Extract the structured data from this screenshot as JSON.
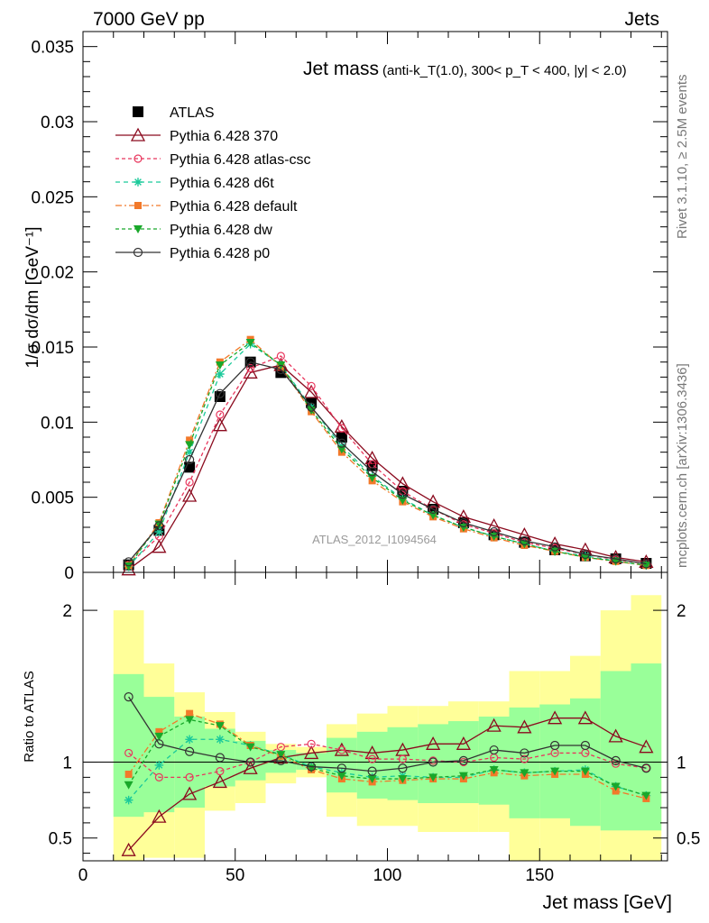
{
  "header": {
    "left": "7000 GeV pp",
    "right": "Jets"
  },
  "side_labels": {
    "rivet": "Rivet 3.1.10, ≥ 2.5M events",
    "mcplots": "mcplots.cern.ch [arXiv:1306.3436]"
  },
  "colors": {
    "ATLAS": "#000000",
    "p370": "#8b0a1e",
    "atlas_csc": "#e8365d",
    "d6t": "#1ac99a",
    "default": "#f2792a",
    "dw": "#19a82a",
    "p0": "#333333",
    "band_outer": "#ffff99",
    "band_inner": "#99ff99"
  },
  "chart_data": [
    {
      "type": "line",
      "title": "Jet mass",
      "subtitle": "(anti-k_T(1.0), 300< p_T < 400, |y| < 2.0)",
      "ylabel": "1/σ dσ/dm [GeV⁻¹]",
      "xlabel": "",
      "watermark": "ATLAS_2012_I1094564",
      "xlim": [
        0,
        192
      ],
      "ylim": [
        0,
        0.036
      ],
      "yticks": [
        0,
        0.005,
        0.01,
        0.015,
        0.02,
        0.025,
        0.03,
        0.035
      ],
      "ytick_labels": [
        "0",
        "0.005",
        "0.01",
        "0.015",
        "0.02",
        "0.025",
        "0.03",
        "0.035"
      ],
      "legend_position": "top-left",
      "x": [
        15,
        25,
        35,
        45,
        55,
        65,
        75,
        85,
        95,
        105,
        115,
        125,
        135,
        145,
        155,
        165,
        175,
        185
      ],
      "series": [
        {
          "name": "ATLAS",
          "key": "ATLAS",
          "marker": "square",
          "dash": "none",
          "values": [
            0.0005,
            0.0028,
            0.007,
            0.0117,
            0.014,
            0.0133,
            0.0113,
            0.009,
            0.0071,
            0.0054,
            0.0042,
            0.0033,
            0.0025,
            0.002,
            0.0015,
            0.0011,
            0.0009,
            0.0006
          ]
        },
        {
          "name": "Pythia 6.428 370",
          "key": "p370",
          "marker": "triangle",
          "dash": "none",
          "values": [
            0.0002,
            0.0017,
            0.0051,
            0.0098,
            0.0133,
            0.0138,
            0.012,
            0.0097,
            0.0076,
            0.0059,
            0.0047,
            0.0037,
            0.0031,
            0.0025,
            0.0019,
            0.0015,
            0.001,
            0.0007
          ]
        },
        {
          "name": "Pythia 6.428 atlas-csc",
          "key": "atlas_csc",
          "marker": "circle",
          "dash": "4,3",
          "values": [
            0.0005,
            0.0024,
            0.006,
            0.0105,
            0.0136,
            0.0144,
            0.0124,
            0.0096,
            0.0072,
            0.0054,
            0.0042,
            0.0032,
            0.0026,
            0.002,
            0.0016,
            0.0012,
            0.00085,
            0.00058
          ]
        },
        {
          "name": "Pythia 6.428 d6t",
          "key": "d6t",
          "marker": "star",
          "dash": "5,4",
          "values": [
            0.00038,
            0.0027,
            0.008,
            0.0132,
            0.0152,
            0.0138,
            0.011,
            0.0084,
            0.0064,
            0.0049,
            0.0038,
            0.003,
            0.0024,
            0.0019,
            0.0014,
            0.0011,
            0.00075,
            0.00047
          ]
        },
        {
          "name": "Pythia 6.428 default",
          "key": "default",
          "marker": "square-small",
          "dash": "7,3,2,3",
          "values": [
            0.00046,
            0.0033,
            0.0088,
            0.014,
            0.0155,
            0.0137,
            0.0107,
            0.008,
            0.0061,
            0.0047,
            0.0037,
            0.0029,
            0.0023,
            0.0018,
            0.0014,
            0.001,
            0.00073,
            0.00046
          ]
        },
        {
          "name": "Pythia 6.428 dw",
          "key": "dw",
          "marker": "triangle-down",
          "dash": "4,3",
          "values": [
            0.00042,
            0.0032,
            0.0085,
            0.0138,
            0.0153,
            0.0138,
            0.0108,
            0.0082,
            0.0063,
            0.0048,
            0.0038,
            0.003,
            0.0024,
            0.0019,
            0.0014,
            0.001,
            0.00075,
            0.00047
          ]
        },
        {
          "name": "Pythia 6.428 p0",
          "key": "p0",
          "marker": "circle-open",
          "dash": "none",
          "values": [
            0.0007,
            0.0031,
            0.0075,
            0.0119,
            0.014,
            0.0135,
            0.011,
            0.0086,
            0.0067,
            0.0052,
            0.0042,
            0.0033,
            0.0027,
            0.0021,
            0.0017,
            0.0012,
            0.0009,
            0.00057
          ]
        }
      ]
    },
    {
      "type": "line",
      "ylabel": "Ratio to ATLAS",
      "xlabel": "Jet mass [GeV]",
      "xlim": [
        0,
        192
      ],
      "ylim": [
        0.35,
        2.25
      ],
      "xticks": [
        0,
        50,
        100,
        150
      ],
      "xtick_labels": [
        "0",
        "50",
        "100",
        "150"
      ],
      "yticks": [
        0.5,
        1,
        2
      ],
      "ytick_labels": [
        "0.5",
        "1",
        "2"
      ],
      "reference_line": 1,
      "x": [
        15,
        25,
        35,
        45,
        55,
        65,
        75,
        85,
        95,
        105,
        115,
        125,
        135,
        145,
        155,
        165,
        175,
        185
      ],
      "bin_edges": [
        10,
        20,
        30,
        40,
        50,
        60,
        70,
        80,
        90,
        100,
        110,
        120,
        130,
        140,
        150,
        160,
        170,
        180,
        190
      ],
      "uncertainty_bands": {
        "outer": {
          "lo": [
            0.35,
            0.37,
            0.37,
            0.68,
            0.73,
            0.86,
            0.9,
            0.64,
            0.58,
            0.58,
            0.54,
            0.54,
            0.54,
            0.35,
            0.35,
            0.35,
            0.35,
            0.35
          ],
          "hi": [
            2.0,
            1.65,
            1.46,
            1.33,
            1.2,
            1.12,
            1.1,
            1.25,
            1.32,
            1.37,
            1.37,
            1.4,
            1.4,
            1.6,
            1.6,
            1.7,
            2.0,
            2.1
          ]
        },
        "inner": {
          "lo": [
            0.64,
            0.67,
            0.7,
            0.84,
            0.88,
            0.93,
            0.95,
            0.8,
            0.76,
            0.75,
            0.73,
            0.73,
            0.72,
            0.63,
            0.63,
            0.58,
            0.55,
            0.55
          ],
          "hi": [
            1.58,
            1.43,
            1.3,
            1.22,
            1.14,
            1.08,
            1.06,
            1.16,
            1.2,
            1.23,
            1.25,
            1.27,
            1.3,
            1.36,
            1.38,
            1.42,
            1.6,
            1.65
          ]
        }
      },
      "series": [
        {
          "key": "p370",
          "values": [
            0.42,
            0.64,
            0.79,
            0.87,
            0.96,
            1.03,
            1.06,
            1.08,
            1.06,
            1.08,
            1.12,
            1.12,
            1.24,
            1.23,
            1.29,
            1.29,
            1.17,
            1.1
          ]
        },
        {
          "key": "atlas_csc",
          "values": [
            1.06,
            0.9,
            0.9,
            0.94,
            1.0,
            1.1,
            1.12,
            1.08,
            1.02,
            1.02,
            1.01,
            1.0,
            1.03,
            1.02,
            1.06,
            1.06,
            0.99,
            0.96
          ]
        },
        {
          "key": "d6t",
          "values": [
            0.75,
            0.98,
            1.15,
            1.15,
            1.11,
            1.05,
            0.97,
            0.93,
            0.9,
            0.91,
            0.9,
            0.9,
            0.95,
            0.93,
            0.94,
            0.95,
            0.84,
            0.78
          ]
        },
        {
          "key": "default",
          "values": [
            0.92,
            1.2,
            1.32,
            1.25,
            1.11,
            1.04,
            0.95,
            0.89,
            0.87,
            0.88,
            0.89,
            0.89,
            0.93,
            0.91,
            0.92,
            0.92,
            0.81,
            0.76
          ]
        },
        {
          "key": "dw",
          "values": [
            0.85,
            1.17,
            1.28,
            1.24,
            1.1,
            1.05,
            0.96,
            0.91,
            0.89,
            0.89,
            0.9,
            0.91,
            0.95,
            0.93,
            0.94,
            0.94,
            0.84,
            0.78
          ]
        },
        {
          "key": "p0",
          "values": [
            1.43,
            1.12,
            1.07,
            1.03,
            1.0,
            1.01,
            0.97,
            0.96,
            0.94,
            0.96,
            1.0,
            1.01,
            1.08,
            1.06,
            1.11,
            1.11,
            1.01,
            0.96
          ]
        }
      ]
    }
  ]
}
